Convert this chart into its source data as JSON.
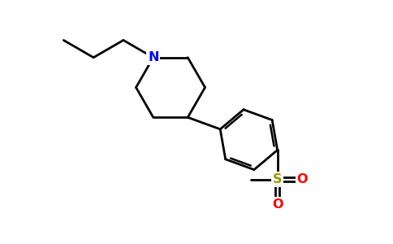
{
  "bg_color": "#ffffff",
  "bond_color": "#000000",
  "N_color": "#0000ff",
  "S_color": "#999900",
  "O_color": "#ff0000",
  "line_width": 2.0,
  "figsize": [
    4.84,
    3.0
  ],
  "dpi": 100,
  "xlim": [
    0,
    9.68
  ],
  "ylim": [
    0,
    6.0
  ]
}
